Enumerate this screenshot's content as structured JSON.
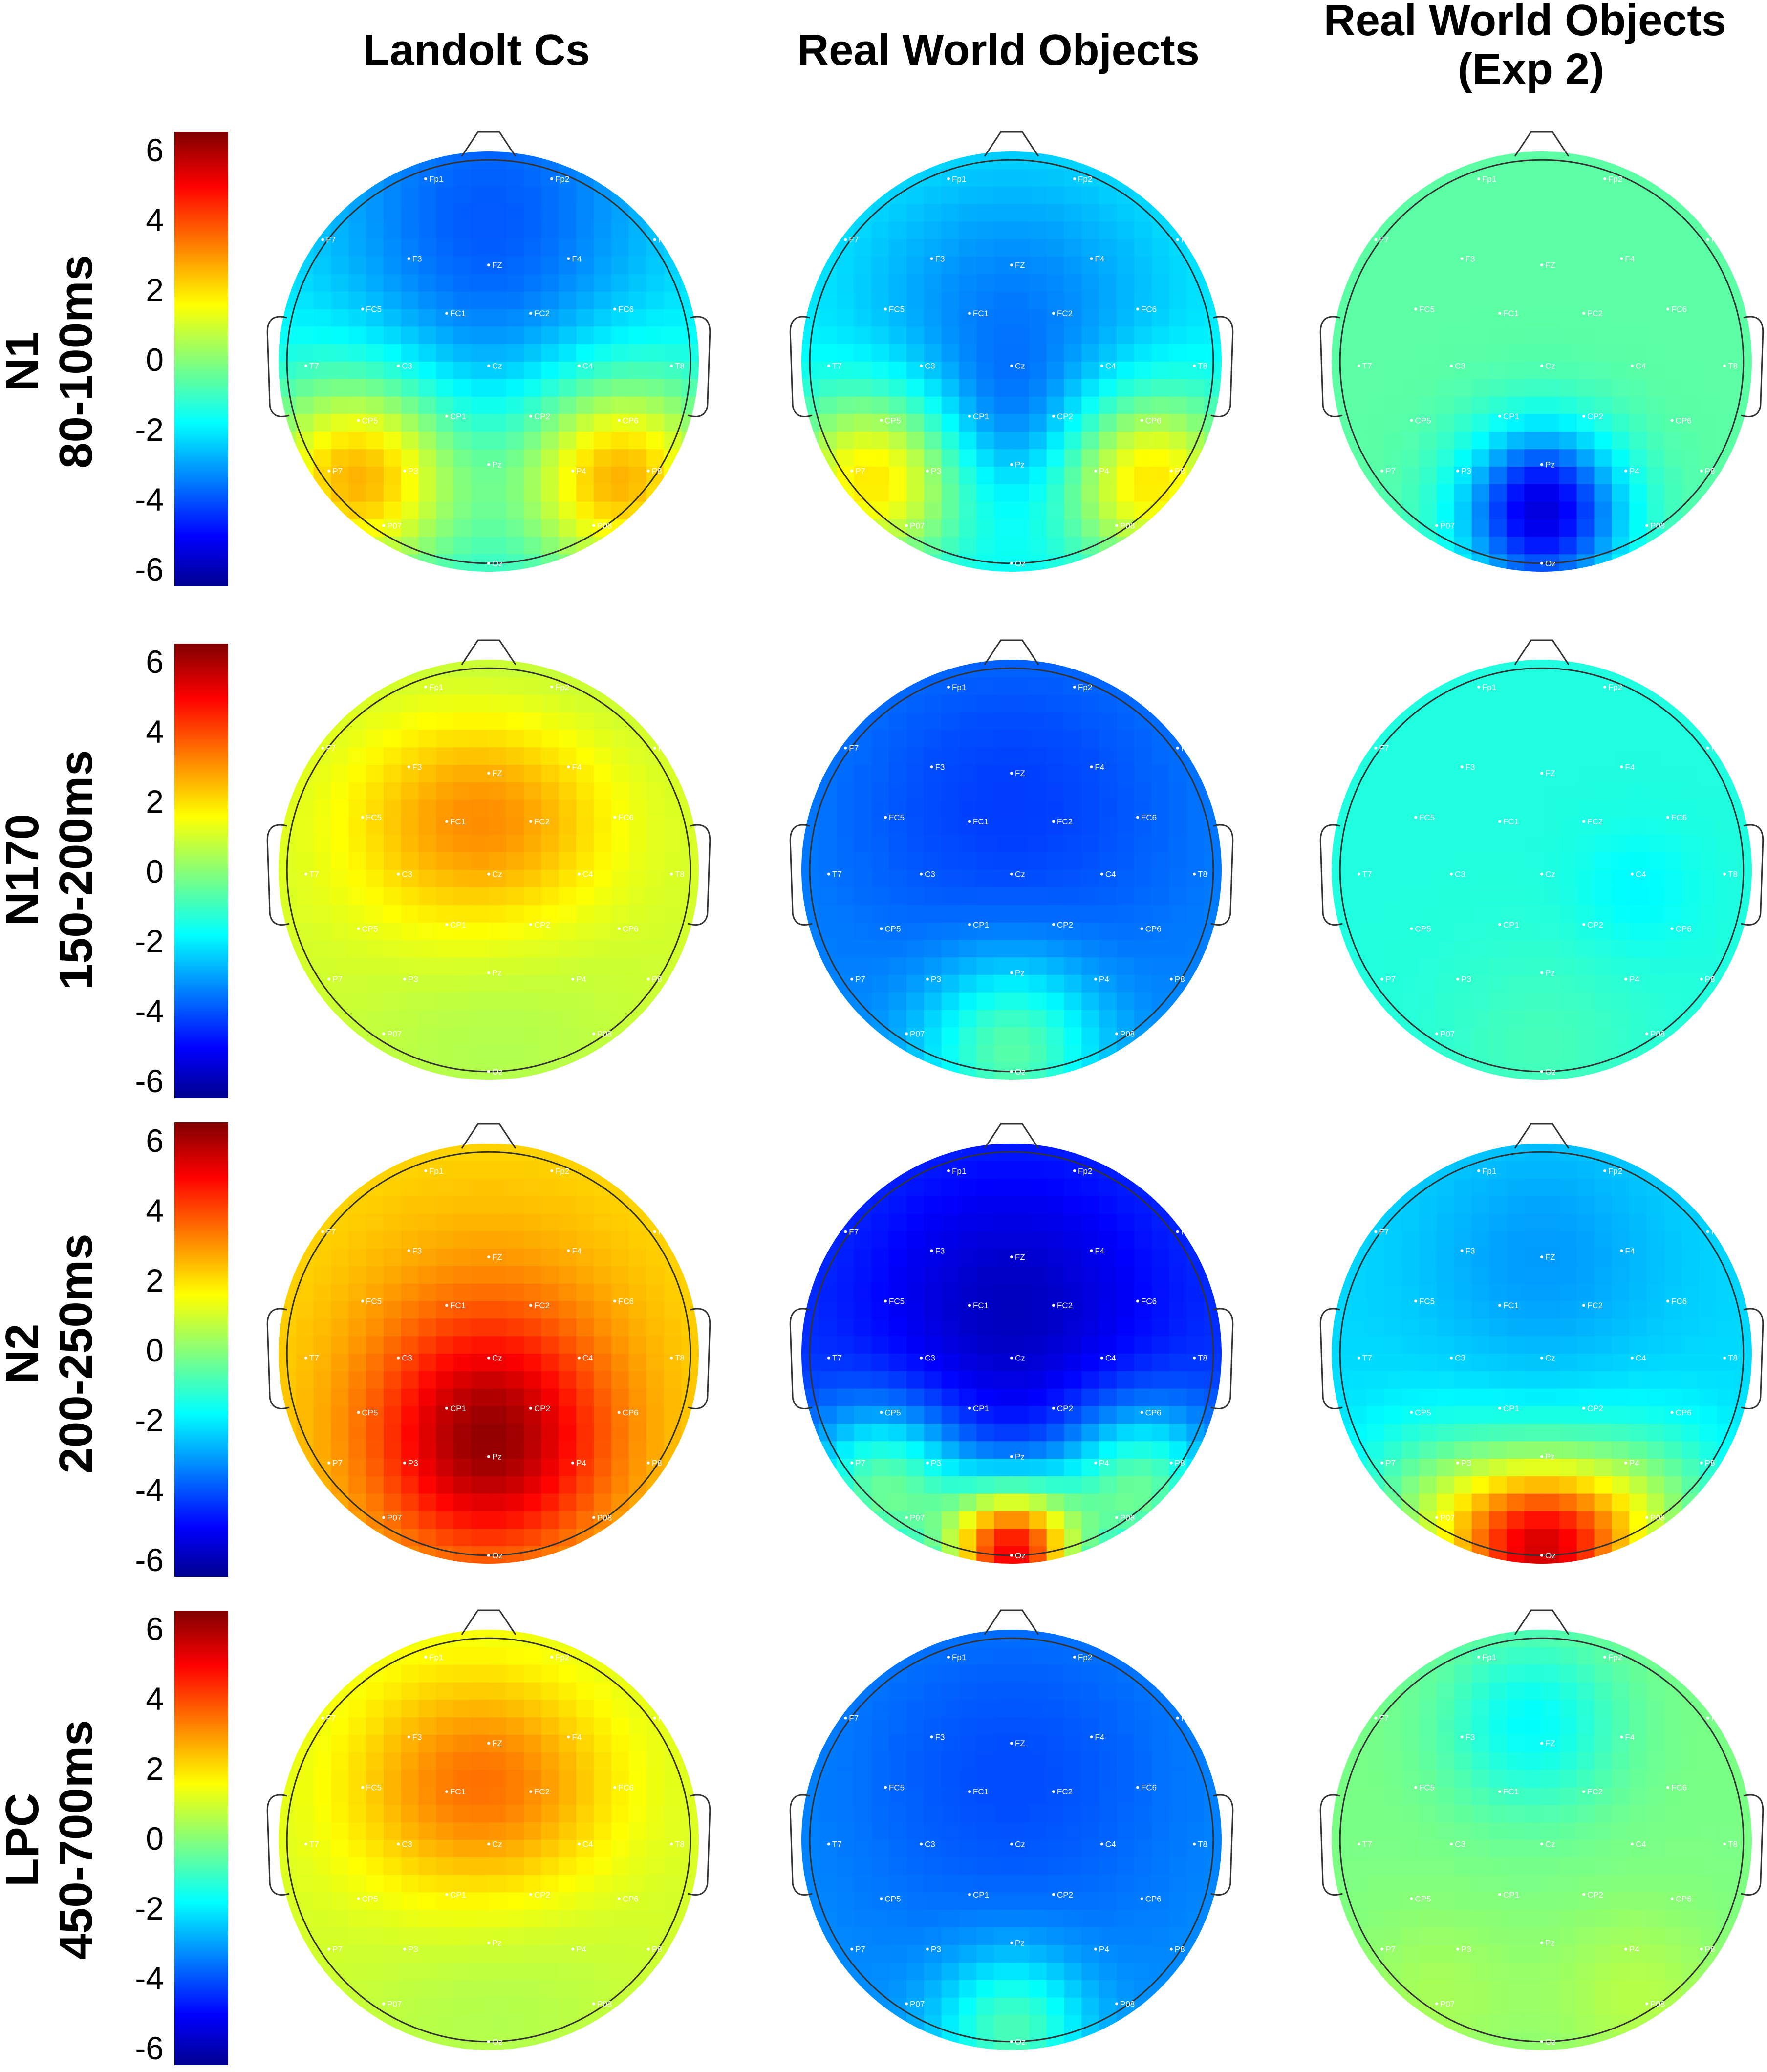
{
  "columns": [
    "Landolt Cs",
    "Real World Objects",
    "Real World Objects\n(Exp 2)"
  ],
  "rows": [
    {
      "component": "N1",
      "window": "80-100ms"
    },
    {
      "component": "N170",
      "window": "150-200ms"
    },
    {
      "component": "N2",
      "window": "200-250ms"
    },
    {
      "component": "LPC",
      "window": "450-700ms"
    }
  ],
  "colorbar": {
    "ticks": [
      "6",
      "4",
      "2",
      "0",
      "-2",
      "-4",
      "-6"
    ],
    "range": [
      -6.5,
      6.5
    ],
    "colormap": "jet",
    "colors": [
      "#00008f",
      "#0000ff",
      "#00ffff",
      "#ffff00",
      "#ff0000",
      "#800000"
    ]
  },
  "electrodes": [
    "Fp1",
    "Fp2",
    "F7",
    "F3",
    "FZ",
    "F4",
    "F8",
    "FC5",
    "FC1",
    "FC2",
    "FC6",
    "T7",
    "C3",
    "Cz",
    "C4",
    "T8",
    "CP5",
    "CP1",
    "CP2",
    "CP6",
    "P7",
    "P3",
    "Pz",
    "P4",
    "P8",
    "P07",
    "P08",
    "Oz"
  ],
  "maps": [
    [
      {
        "base": -1.8,
        "blobs": [
          [
            -0.62,
            0.55,
            0.34,
            4.5
          ],
          [
            0.62,
            0.55,
            0.34,
            4.5
          ],
          [
            0,
            -0.8,
            0.6,
            -2.0
          ],
          [
            0,
            -0.1,
            0.4,
            -0.5
          ]
        ]
      },
      {
        "base": -1.8,
        "blobs": [
          [
            -0.65,
            0.55,
            0.3,
            4.0
          ],
          [
            0.65,
            0.55,
            0.3,
            4.0
          ],
          [
            0,
            -0.2,
            0.55,
            -1.7
          ],
          [
            0,
            0.3,
            0.25,
            -0.8
          ]
        ]
      },
      {
        "base": -0.6,
        "blobs": [
          [
            0,
            0.75,
            0.28,
            -4.4
          ],
          [
            0,
            0.55,
            0.2,
            -0.8
          ]
        ]
      }
    ],
    [
      {
        "base": 1.0,
        "blobs": [
          [
            -0.15,
            -0.25,
            0.4,
            2.0
          ],
          [
            0.25,
            -0.25,
            0.35,
            0.8
          ],
          [
            0,
            0.8,
            0.5,
            -0.5
          ],
          [
            0,
            -0.85,
            0.6,
            -0.6
          ]
        ]
      },
      {
        "base": -3.3,
        "blobs": [
          [
            0,
            -0.3,
            0.6,
            -1.0
          ],
          [
            0,
            0.85,
            0.3,
            2.8
          ]
        ]
      },
      {
        "base": -1.4,
        "blobs": [
          [
            0.45,
            0.1,
            0.2,
            -0.5
          ],
          [
            0,
            0.85,
            0.35,
            0.5
          ]
        ]
      }
    ],
    [
      {
        "base": 2.0,
        "blobs": [
          [
            0,
            0.45,
            0.4,
            3.6
          ],
          [
            0,
            0.0,
            0.5,
            1.0
          ]
        ]
      },
      {
        "base": -4.3,
        "blobs": [
          [
            0,
            -0.2,
            0.5,
            -1.6
          ],
          [
            0,
            0.95,
            0.22,
            9.0
          ],
          [
            -0.6,
            0.65,
            0.28,
            4.0
          ],
          [
            0.6,
            0.65,
            0.28,
            4.0
          ]
        ]
      },
      {
        "base": -2.3,
        "blobs": [
          [
            0,
            -0.45,
            0.4,
            -0.8
          ],
          [
            0,
            0.95,
            0.3,
            7.0
          ],
          [
            -0.5,
            0.75,
            0.3,
            2.0
          ],
          [
            0.5,
            0.75,
            0.3,
            2.0
          ]
        ]
      }
    ],
    [
      {
        "base": 1.0,
        "blobs": [
          [
            -0.15,
            -0.25,
            0.4,
            2.0
          ],
          [
            0.25,
            -0.25,
            0.35,
            0.8
          ],
          [
            0,
            0.8,
            0.5,
            -0.5
          ]
        ]
      },
      {
        "base": -3.2,
        "blobs": [
          [
            0,
            -0.3,
            0.6,
            -0.9
          ],
          [
            0,
            0.9,
            0.25,
            2.5
          ]
        ]
      },
      {
        "base": -0.2,
        "blobs": [
          [
            -0.05,
            -0.55,
            0.3,
            -1.6
          ],
          [
            0.45,
            0.75,
            0.3,
            0.8
          ],
          [
            -0.5,
            0.75,
            0.3,
            0.6
          ]
        ]
      }
    ]
  ]
}
